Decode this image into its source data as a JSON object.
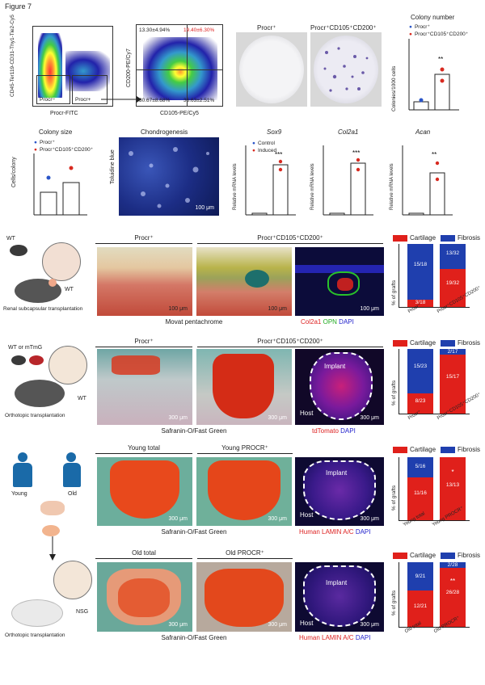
{
  "figure_label": "Figure 7",
  "flow": {
    "ylabel": "CD45-Ter119-CD31-Thy1-Tie2-Cy5",
    "xlabel1": "Procr-FITC",
    "gate_neg": "Procr−",
    "gate_pos": "Procr+",
    "ylabel2": "CD200-PE/Cy7",
    "xlabel2": "CD105-PE/Cy5",
    "q_tl": "13.30±4.94%",
    "q_tr": "19.40±6.30%",
    "q_bl": "30.67±8.68%",
    "q_br": "36.63±2.51%"
  },
  "dishes": {
    "label1": "Procr⁺",
    "label2": "Procr⁺CD105⁺CD200⁺"
  },
  "colony_number": {
    "title": "Colony number",
    "ylabel": "Colonies/1000 cells",
    "legend1": "Procr⁺",
    "legend2": "Procr⁺CD105⁺CD200⁺",
    "sig": "**"
  },
  "colony_size": {
    "title": "Colony size",
    "ylabel": "Cells/colony",
    "legend1": "Procr⁺",
    "legend2": "Procr⁺CD105⁺CD200⁺"
  },
  "chondro": {
    "title": "Chondrogenesis",
    "ylabel": "Toluidine blue",
    "scale": "100 μm"
  },
  "qpcr": {
    "legend1": "Control",
    "legend2": "Induced",
    "ylabel": "Relative mRNA levels",
    "charts": [
      {
        "gene": "Sox9",
        "sig": "***"
      },
      {
        "gene": "Col2a1",
        "sig": "***"
      },
      {
        "gene": "Acan",
        "sig": "**"
      }
    ]
  },
  "row2": {
    "wt_label": "WT",
    "wt_label2": "WT",
    "caption": "Renal subcapsular transplantation",
    "col1": "Procr⁺",
    "col2": "Procr⁺CD105⁺CD200⁺",
    "scale": "100 μm",
    "stain_caption": "Movat pentachrome",
    "if_c1": "Col2a1",
    "if_c2": "OPN",
    "if_c3": "DAPI",
    "legend_cart": "Cartilage",
    "legend_fib": "Fibrosis",
    "yl": "% of grafts",
    "bar1_top": "15/18",
    "bar1_bot": "3/18",
    "bar2_top": "13/32",
    "bar2_bot": "19/32",
    "x1": "Procr⁺",
    "x2": "Procr⁺CD105⁺CD200⁺"
  },
  "row3": {
    "wt_label": "WT or mTmG",
    "wt_label2": "WT",
    "caption": "Orthotopic transplantation",
    "col1": "Procr⁺",
    "col2": "Procr⁺CD105⁺CD200⁺",
    "scale": "300 μm",
    "stain_caption": "Safranin-O/Fast Green",
    "implant": "Implant",
    "host": "Host",
    "if_c1": "tdTomato",
    "if_c2": "DAPI",
    "legend_cart": "Cartilage",
    "legend_fib": "Fibrosis",
    "yl": "% of grafts",
    "bar1_top": "15/23",
    "bar1_bot": "8/23",
    "bar2_top": "2/17",
    "bar2_bot": "15/17",
    "x1": "Procr⁺",
    "x2": "Procr⁺CD105⁺CD200⁺"
  },
  "row4": {
    "young": "Young",
    "old": "Old",
    "col1": "Young total",
    "col2": "Young PROCR⁺",
    "scale": "300 μm",
    "stain_caption": "Safranin-O/Fast Green",
    "implant": "Implant",
    "host": "Host",
    "if_c1": "Human LAMIN A/C",
    "if_c2": "DAPI",
    "legend_cart": "Cartilage",
    "legend_fib": "Fibrosis",
    "yl": "% of grafts",
    "bar1_top": "5/16",
    "bar1_bot": "11/16",
    "bar2_bot": "13/13",
    "sig": "*",
    "x1": "Young total",
    "x2": "Young PROCR⁺"
  },
  "row5": {
    "caption1": "NSG",
    "caption2": "Orthotopic transplantation",
    "col1": "Old total",
    "col2": "Old PROCR⁺",
    "scale": "300 μm",
    "stain_caption": "Safranin-O/Fast Green",
    "implant": "Implant",
    "host": "Host",
    "if_c1": "Human LAMIN A/C",
    "if_c2": "DAPI",
    "legend_cart": "Cartilage",
    "legend_fib": "Fibrosis",
    "yl": "% of grafts",
    "bar1_top": "9/21",
    "bar1_bot": "12/21",
    "bar2_top": "2/28",
    "bar2_bot": "26/28",
    "sig": "**",
    "x1": "Old total",
    "x2": "Old PROCR⁺"
  },
  "colors": {
    "cartilage": "#e0201b",
    "fibrosis": "#1f3fae",
    "safranin": "#d83a10",
    "ctrl": "#2a55c8",
    "induced": "#d82a20"
  }
}
